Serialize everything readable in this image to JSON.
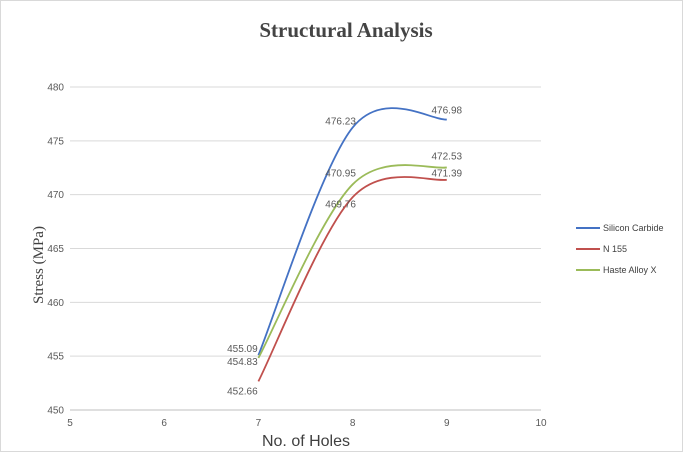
{
  "chart_data": {
    "type": "line",
    "title": "Structural Analysis",
    "xlabel": "No. of Holes",
    "ylabel": "Stress (MPa)",
    "xlim": [
      5,
      10
    ],
    "ylim": [
      450,
      480
    ],
    "x_ticks": [
      5,
      6,
      7,
      8,
      9,
      10
    ],
    "y_ticks": [
      450,
      455,
      460,
      465,
      470,
      475,
      480
    ],
    "grid": "horizontal",
    "legend_position": "right",
    "x": [
      7,
      8,
      9
    ],
    "series": [
      {
        "name": "Silicon Carbide",
        "color": "#4472C4",
        "values": [
          455.09,
          476.23,
          476.98
        ],
        "labels": [
          "455.09",
          "476.23",
          "476.98"
        ]
      },
      {
        "name": "N 155",
        "color": "#C0504D",
        "values": [
          452.66,
          469.76,
          471.39
        ],
        "labels": [
          "452.66",
          "469.76",
          "471.39"
        ]
      },
      {
        "name": "Haste Alloy X",
        "color": "#9BBB59",
        "values": [
          454.83,
          470.95,
          472.53
        ],
        "labels": [
          "454.83",
          "470.95",
          "472.53"
        ]
      }
    ]
  }
}
